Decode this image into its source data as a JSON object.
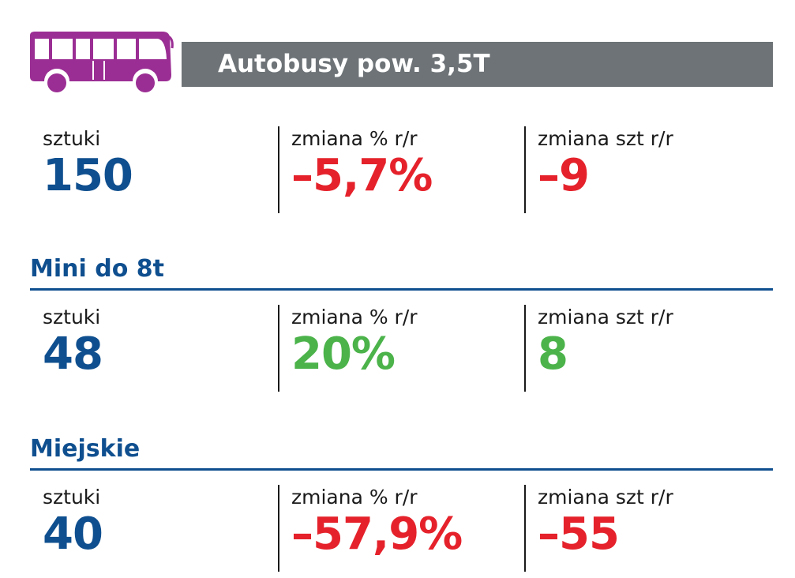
{
  "header": {
    "title": "Autobusy pow. 3,5T",
    "icon": "bus-icon",
    "icon_color": "#9b2e94",
    "bar_color": "#6d7377"
  },
  "colors": {
    "blue": "#0f4f8f",
    "red": "#e5222b",
    "green": "#4bb34a"
  },
  "summary": {
    "units_label": "sztuki",
    "units_value": "150",
    "pct_label": "zmiana % r/r",
    "pct_value": "–5,7%",
    "abs_label": "zmiana szt r/r",
    "abs_value": "–9"
  },
  "mini": {
    "title": "Mini do 8t",
    "units_label": "sztuki",
    "units_value": "48",
    "pct_label": "zmiana % r/r",
    "pct_value": "20%",
    "abs_label": "zmiana szt r/r",
    "abs_value": "8"
  },
  "city": {
    "title": "Miejskie",
    "units_label": "sztuki",
    "units_value": "40",
    "pct_label": "zmiana % r/r",
    "pct_value": "–57,9%",
    "abs_label": "zmiana szt r/r",
    "abs_value": "–55"
  }
}
